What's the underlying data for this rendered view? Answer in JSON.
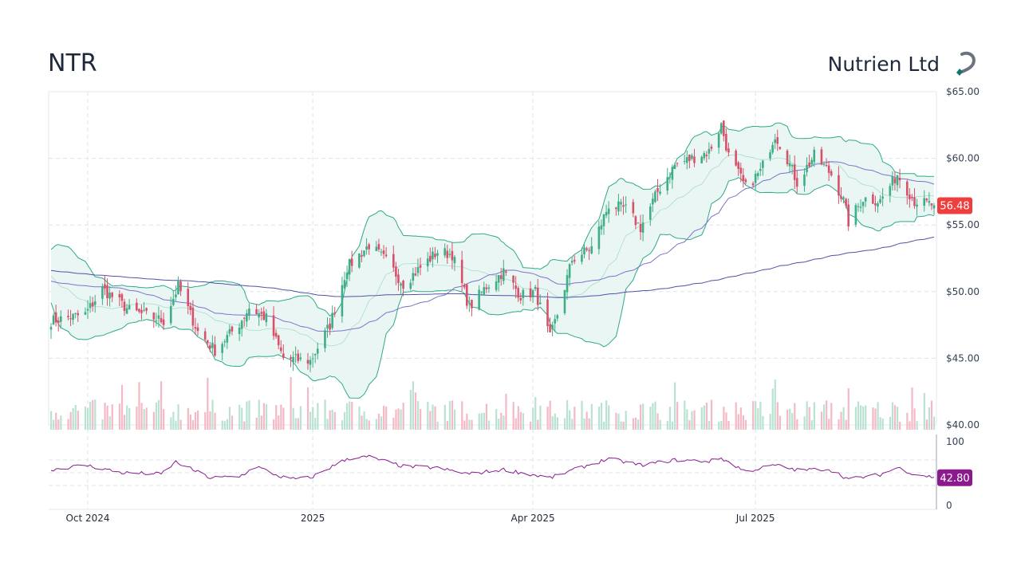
{
  "header": {
    "ticker": "NTR",
    "company": "Nutrien Ltd"
  },
  "logo": {
    "icon": "nutrien-hook-logo-icon",
    "colors": [
      "#6b7280",
      "#0f766e"
    ]
  },
  "colors": {
    "up": "#3fae86",
    "down": "#d9506a",
    "band_fill": "#e8f5f2",
    "band_line": "#2ea98a",
    "sma50": "#7b74c9",
    "sma200": "#4f52a8",
    "rsi": "#8b1a8f",
    "price_badge": "#ef3e3e",
    "rsi_badge": "#8b1a8f"
  },
  "chart_data": {
    "type": "candlestick",
    "price_axis": {
      "ylim": [
        40,
        65
      ],
      "ticks": [
        "$65.00",
        "$60.00",
        "$55.00",
        "$50.00",
        "$45.00",
        "$40.00"
      ],
      "tick_values": [
        65,
        60,
        55,
        50,
        45,
        40
      ]
    },
    "rsi_axis": {
      "ylim": [
        0,
        100
      ],
      "ticks": [
        "100",
        "0"
      ],
      "tick_values": [
        100,
        0
      ]
    },
    "x_ticks": [
      {
        "label": "Oct 2024",
        "date": "2024-10-01"
      },
      {
        "label": "2025",
        "date": "2025-01-01"
      },
      {
        "label": "Apr 2025",
        "date": "2025-04-01"
      },
      {
        "label": "Jul 2025",
        "date": "2025-07-01"
      }
    ],
    "date_range": [
      "2024-09-16",
      "2025-09-12"
    ],
    "last_price": "56.48",
    "last_rsi": "42.80",
    "price_keypoints": [
      [
        "2024-09-16",
        47.8
      ],
      [
        "2024-09-30",
        48.3
      ],
      [
        "2024-10-07",
        50.2
      ],
      [
        "2024-10-18",
        48.6
      ],
      [
        "2024-11-01",
        47.8
      ],
      [
        "2024-11-07",
        50.4
      ],
      [
        "2024-11-15",
        47.0
      ],
      [
        "2024-11-22",
        45.6
      ],
      [
        "2024-12-02",
        47.6
      ],
      [
        "2024-12-06",
        48.8
      ],
      [
        "2024-12-13",
        48.0
      ],
      [
        "2024-12-20",
        45.0
      ],
      [
        "2024-12-31",
        44.8
      ],
      [
        "2025-01-08",
        47.5
      ],
      [
        "2025-01-15",
        51.8
      ],
      [
        "2025-01-24",
        53.5
      ],
      [
        "2025-01-31",
        52.3
      ],
      [
        "2025-02-07",
        50.6
      ],
      [
        "2025-02-14",
        51.8
      ],
      [
        "2025-02-21",
        53.0
      ],
      [
        "2025-02-27",
        52.8
      ],
      [
        "2025-03-06",
        48.8
      ],
      [
        "2025-03-13",
        50.4
      ],
      [
        "2025-03-20",
        51.5
      ],
      [
        "2025-03-27",
        49.7
      ],
      [
        "2025-04-02",
        50.0
      ],
      [
        "2025-04-08",
        46.5
      ],
      [
        "2025-04-11",
        48.3
      ],
      [
        "2025-04-17",
        52.4
      ],
      [
        "2025-04-25",
        53.3
      ],
      [
        "2025-05-02",
        56.5
      ],
      [
        "2025-05-09",
        56.2
      ],
      [
        "2025-05-15",
        54.8
      ],
      [
        "2025-05-22",
        57.5
      ],
      [
        "2025-05-29",
        59.5
      ],
      [
        "2025-06-05",
        60.0
      ],
      [
        "2025-06-12",
        60.5
      ],
      [
        "2025-06-17",
        62.5
      ],
      [
        "2025-06-20",
        60.2
      ],
      [
        "2025-06-27",
        57.8
      ],
      [
        "2025-07-03",
        59.0
      ],
      [
        "2025-07-09",
        61.8
      ],
      [
        "2025-07-14",
        60.0
      ],
      [
        "2025-07-18",
        58.2
      ],
      [
        "2025-07-25",
        60.2
      ],
      [
        "2025-08-01",
        58.8
      ],
      [
        "2025-08-06",
        56.8
      ],
      [
        "2025-08-08",
        55.2
      ],
      [
        "2025-08-14",
        57.0
      ],
      [
        "2025-08-21",
        56.8
      ],
      [
        "2025-08-28",
        58.8
      ],
      [
        "2025-09-04",
        56.8
      ],
      [
        "2025-09-12",
        56.48
      ]
    ],
    "rsi_keypoints": [
      [
        "2024-09-16",
        55
      ],
      [
        "2024-09-30",
        62
      ],
      [
        "2024-10-15",
        50
      ],
      [
        "2024-10-31",
        48
      ],
      [
        "2024-11-06",
        67
      ],
      [
        "2024-11-20",
        42
      ],
      [
        "2024-12-02",
        44
      ],
      [
        "2024-12-09",
        60
      ],
      [
        "2024-12-18",
        45
      ],
      [
        "2024-12-23",
        40
      ],
      [
        "2024-12-31",
        42
      ],
      [
        "2025-01-15",
        72
      ],
      [
        "2025-01-24",
        75
      ],
      [
        "2025-02-07",
        60
      ],
      [
        "2025-02-20",
        58
      ],
      [
        "2025-03-06",
        48
      ],
      [
        "2025-03-20",
        55
      ],
      [
        "2025-04-08",
        42
      ],
      [
        "2025-04-22",
        60
      ],
      [
        "2025-05-02",
        72
      ],
      [
        "2025-05-15",
        62
      ],
      [
        "2025-05-29",
        70
      ],
      [
        "2025-06-12",
        68
      ],
      [
        "2025-06-17",
        73
      ],
      [
        "2025-06-27",
        52
      ],
      [
        "2025-07-09",
        62
      ],
      [
        "2025-07-18",
        54
      ],
      [
        "2025-07-31",
        56
      ],
      [
        "2025-08-08",
        40
      ],
      [
        "2025-08-21",
        47
      ],
      [
        "2025-08-28",
        58
      ],
      [
        "2025-09-04",
        48
      ],
      [
        "2025-09-12",
        43
      ]
    ]
  }
}
